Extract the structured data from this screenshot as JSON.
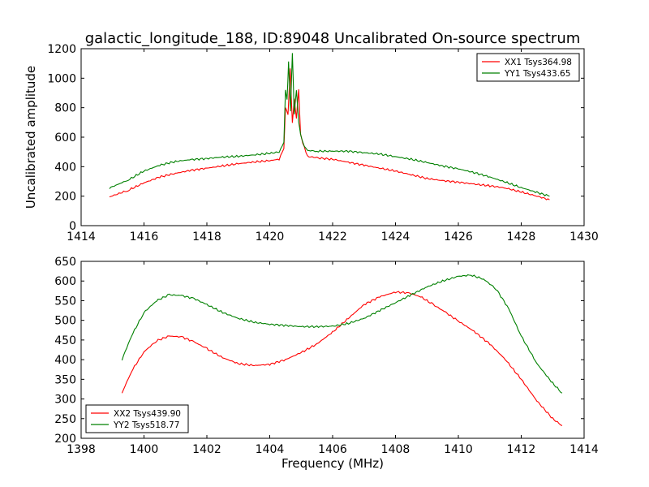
{
  "chart_data": [
    {
      "type": "line",
      "title": "galactic_longitude_188, ID:89048 Uncalibrated On-source spectrum",
      "xlabel": "",
      "ylabel": "Uncalibrated amplitude",
      "xlim": [
        1414,
        1430
      ],
      "ylim": [
        0,
        1200
      ],
      "xticks": [
        1414,
        1416,
        1418,
        1420,
        1422,
        1424,
        1426,
        1428,
        1430
      ],
      "yticks": [
        0,
        200,
        400,
        600,
        800,
        1000,
        1200
      ],
      "legend_position": "top-right",
      "series": [
        {
          "name": "XX1 Tsys364.98",
          "color": "#ff0000",
          "x": [
            1414.9,
            1415.5,
            1416.0,
            1416.5,
            1417.0,
            1417.5,
            1418.0,
            1418.5,
            1419.0,
            1419.5,
            1420.0,
            1420.3,
            1420.45,
            1420.5,
            1420.58,
            1420.65,
            1420.72,
            1420.78,
            1420.85,
            1420.92,
            1420.98,
            1421.05,
            1421.2,
            1421.5,
            1422.0,
            1422.5,
            1423.0,
            1423.5,
            1424.0,
            1424.5,
            1425.0,
            1425.5,
            1426.0,
            1426.5,
            1427.0,
            1427.5,
            1428.0,
            1428.5,
            1428.9
          ],
          "y": [
            195,
            240,
            290,
            330,
            355,
            375,
            390,
            405,
            420,
            432,
            440,
            452,
            520,
            800,
            750,
            1060,
            700,
            860,
            730,
            930,
            620,
            560,
            470,
            460,
            450,
            430,
            410,
            390,
            370,
            345,
            320,
            305,
            295,
            282,
            270,
            255,
            228,
            200,
            175
          ]
        },
        {
          "name": "YY1 Tsys433.65",
          "color": "#008000",
          "x": [
            1414.9,
            1415.5,
            1416.0,
            1416.5,
            1417.0,
            1417.5,
            1418.0,
            1418.5,
            1419.0,
            1419.5,
            1420.0,
            1420.3,
            1420.45,
            1420.5,
            1420.55,
            1420.6,
            1420.66,
            1420.72,
            1420.78,
            1420.85,
            1420.92,
            1420.98,
            1421.05,
            1421.2,
            1421.5,
            1422.0,
            1422.5,
            1423.0,
            1423.5,
            1424.0,
            1424.5,
            1425.0,
            1425.5,
            1426.0,
            1426.5,
            1427.0,
            1427.5,
            1428.0,
            1428.5,
            1428.9
          ],
          "y": [
            255,
            310,
            370,
            410,
            435,
            448,
            455,
            465,
            470,
            480,
            490,
            500,
            560,
            920,
            850,
            1110,
            780,
            1170,
            760,
            920,
            700,
            620,
            560,
            510,
            505,
            505,
            505,
            495,
            485,
            468,
            450,
            428,
            405,
            385,
            360,
            330,
            295,
            258,
            225,
            200
          ]
        }
      ]
    },
    {
      "type": "line",
      "title": "",
      "xlabel": "Frequency (MHz)",
      "ylabel": "",
      "xlim": [
        1398,
        1414
      ],
      "ylim": [
        200,
        650
      ],
      "xticks": [
        1398,
        1400,
        1402,
        1404,
        1406,
        1408,
        1410,
        1412,
        1414
      ],
      "yticks": [
        200,
        250,
        300,
        350,
        400,
        450,
        500,
        550,
        600,
        650
      ],
      "legend_position": "bottom-left",
      "series": [
        {
          "name": "XX2 Tsys439.90",
          "color": "#ff0000",
          "x": [
            1399.3,
            1399.6,
            1400.0,
            1400.4,
            1400.8,
            1401.2,
            1401.6,
            1402.0,
            1402.5,
            1403.0,
            1403.5,
            1404.0,
            1404.5,
            1405.0,
            1405.5,
            1406.0,
            1406.5,
            1407.0,
            1407.5,
            1408.0,
            1408.4,
            1408.8,
            1409.2,
            1409.6,
            1410.0,
            1410.5,
            1411.0,
            1411.5,
            1412.0,
            1412.5,
            1413.0,
            1413.3
          ],
          "y": [
            315,
            370,
            420,
            448,
            460,
            458,
            445,
            428,
            405,
            390,
            385,
            388,
            400,
            418,
            440,
            470,
            505,
            540,
            560,
            572,
            570,
            560,
            540,
            520,
            498,
            472,
            440,
            400,
            350,
            295,
            250,
            232
          ]
        },
        {
          "name": "YY2 Tsys518.77",
          "color": "#008000",
          "x": [
            1399.3,
            1399.6,
            1400.0,
            1400.4,
            1400.8,
            1401.2,
            1401.6,
            1402.0,
            1402.5,
            1403.0,
            1403.5,
            1404.0,
            1404.5,
            1405.0,
            1405.5,
            1406.0,
            1406.5,
            1407.0,
            1407.5,
            1408.0,
            1408.5,
            1409.0,
            1409.5,
            1410.0,
            1410.4,
            1410.8,
            1411.2,
            1411.6,
            1412.0,
            1412.5,
            1413.0,
            1413.3
          ],
          "y": [
            400,
            460,
            520,
            550,
            565,
            563,
            555,
            540,
            520,
            505,
            495,
            490,
            487,
            484,
            484,
            485,
            492,
            505,
            525,
            545,
            565,
            585,
            600,
            612,
            615,
            605,
            580,
            530,
            460,
            390,
            340,
            315
          ]
        }
      ]
    }
  ]
}
